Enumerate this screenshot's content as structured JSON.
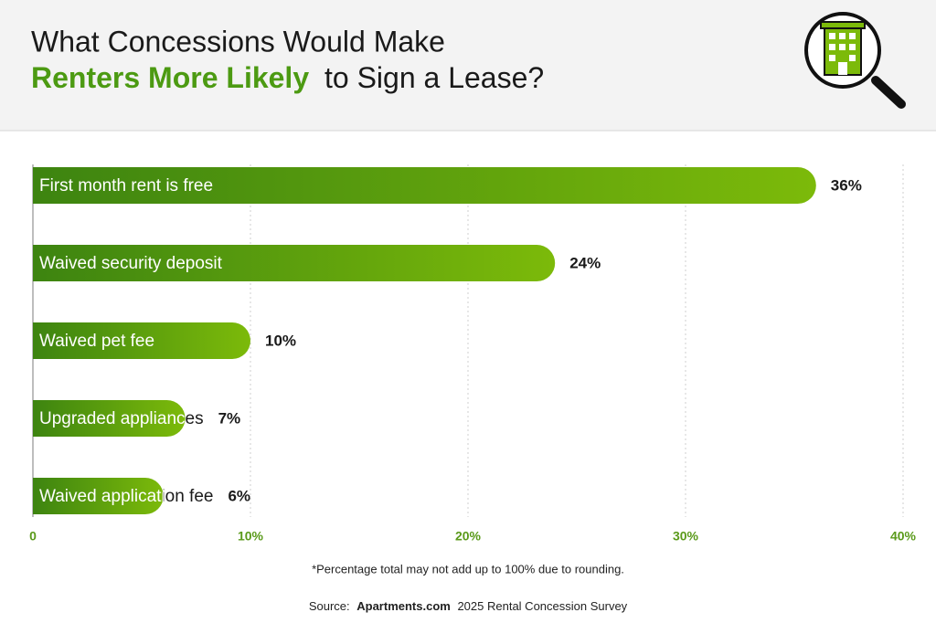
{
  "chart_data": {
    "type": "bar",
    "title_line1": "What Concessions Would Make",
    "title_highlight": "Renters More Likely",
    "title_rest": "to Sign a Lease?",
    "categories": [
      "First month rent is free",
      "Waived security deposit",
      "Waived pet fee",
      "Upgraded appliances",
      "Waived application fee"
    ],
    "values": [
      36,
      24,
      10,
      7,
      6
    ],
    "value_labels": [
      "36%",
      "24%",
      "10%",
      "7%",
      "6%"
    ],
    "color": "#5fa10f",
    "xlim": [
      0,
      40
    ],
    "xticks": [
      0,
      {
        "value": 10,
        "label": "10%"
      },
      {
        "value": 20,
        "label": "20%"
      },
      {
        "value": 30,
        "label": "30%"
      },
      {
        "value": 40,
        "label": "40%"
      }
    ],
    "grid": true,
    "footnote": "*Percentage total may not add up to 100% due to rounding.",
    "source_prefix": "Source:",
    "source_brand": "Apartments.com",
    "source_rest": "2025 Rental Concession Survey"
  }
}
